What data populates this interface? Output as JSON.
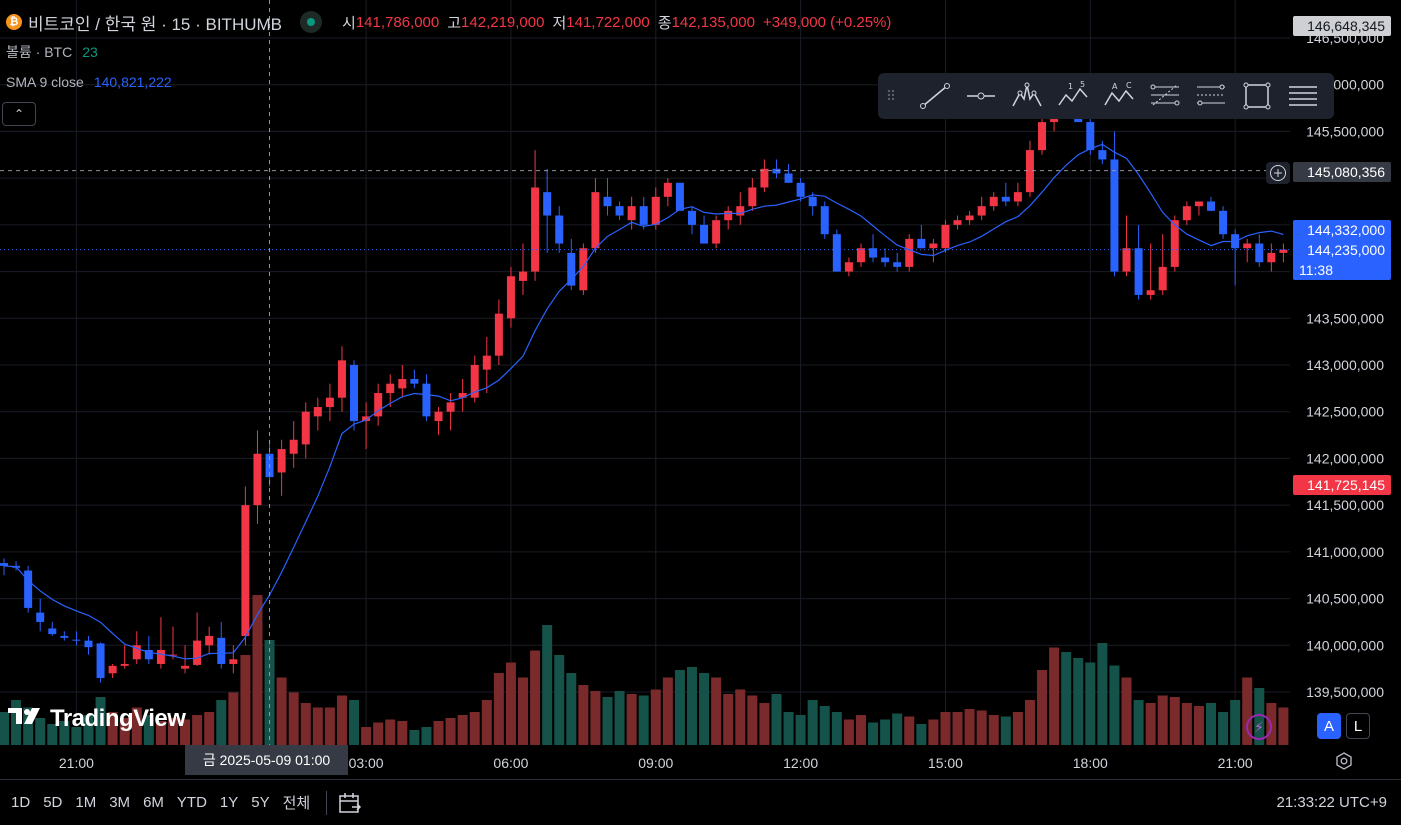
{
  "header": {
    "title": "비트코인 / 한국 원 · 15 · BITHUMB",
    "coin_glyph": "₿",
    "open_label": "시",
    "open_value": "141,786,000",
    "high_label": "고",
    "high_value": "142,219,000",
    "low_label": "저",
    "low_value": "141,722,000",
    "close_label": "종",
    "close_value": "142,135,000",
    "change": "+349,000 (+0.25%)"
  },
  "indicators": {
    "volume_label": "볼륨 · BTC",
    "volume_value": "23",
    "sma_label": "SMA 9 close",
    "sma_value": "140,821,222"
  },
  "collapse_glyph": "⌃",
  "price_tags": {
    "high": "146,648,345",
    "crosshair": "145,080,356",
    "sma": "144,332,000",
    "last": "144,235,000",
    "countdown": "11:38",
    "low": "141,725,145"
  },
  "crosshair_time": "금 2025-05-09   01:00",
  "logo_text": "TradingView",
  "scale_buttons": {
    "auto": "A",
    "log": "L"
  },
  "range_buttons": [
    "1D",
    "5D",
    "1M",
    "3M",
    "6M",
    "YTD",
    "1Y",
    "5Y",
    "전체"
  ],
  "clock": "21:33:22 UTC+9",
  "colors": {
    "up": "#f23645",
    "down": "#2962ff",
    "vol_up": "#7a2a2a",
    "vol_down": "#14524a",
    "sma": "#2962ff",
    "grid": "#1a1d26",
    "text": "#d1d4dc"
  },
  "chart_data": {
    "type": "candlestick",
    "ylim": [
      139100000,
      146800000
    ],
    "y_ticks": [
      139500000,
      140000000,
      140500000,
      141000000,
      141500000,
      142000000,
      142500000,
      143000000,
      143500000,
      144000000,
      144500000,
      145000000,
      145500000,
      146000000,
      146500000
    ],
    "y_tick_labels": [
      "139,500,000",
      "140,000,000",
      "140,500,000",
      "141,000,000",
      "141,500,000",
      "142,000,000",
      "142,500,000",
      "143,000,000",
      "143,500,000",
      "",
      "",
      "",
      "145,500,000",
      "146,000,000",
      "146,500,000"
    ],
    "x_tick_labels": [
      {
        "label": "21:00",
        "bar": 6
      },
      {
        "label": "03:00",
        "bar": 30
      },
      {
        "label": "06:00",
        "bar": 42
      },
      {
        "label": "09:00",
        "bar": 54
      },
      {
        "label": "12:00",
        "bar": 66
      },
      {
        "label": "15:00",
        "bar": 78
      },
      {
        "label": "18:00",
        "bar": 90
      },
      {
        "label": "21:00",
        "bar": 102
      }
    ],
    "crosshair": {
      "bar": 22,
      "price": 145080356
    },
    "candles": [
      [
        140880000,
        140930000,
        140750000,
        140850000
      ],
      [
        140850000,
        140900000,
        140800000,
        140830000
      ],
      [
        140800000,
        140850000,
        140350000,
        140400000
      ],
      [
        140350000,
        140500000,
        140150000,
        140250000
      ],
      [
        140180000,
        140250000,
        140100000,
        140120000
      ],
      [
        140100000,
        140150000,
        140050000,
        140080000
      ],
      [
        140060000,
        140150000,
        140000000,
        140050000
      ],
      [
        140050000,
        140100000,
        139900000,
        139980000
      ],
      [
        140020000,
        140030000,
        139600000,
        139650000
      ],
      [
        139700000,
        139800000,
        139650000,
        139780000
      ],
      [
        139780000,
        140000000,
        139750000,
        139800000
      ],
      [
        139850000,
        140150000,
        139800000,
        140000000
      ],
      [
        139950000,
        140100000,
        139800000,
        139850000
      ],
      [
        139800000,
        140300000,
        139750000,
        139950000
      ],
      [
        139900000,
        140200000,
        139850000,
        139900000
      ],
      [
        139750000,
        140000000,
        139700000,
        139780000
      ],
      [
        139790000,
        140350000,
        139780000,
        140050000
      ],
      [
        140000000,
        140200000,
        139900000,
        140100000
      ],
      [
        140080000,
        140250000,
        139750000,
        139800000
      ],
      [
        139800000,
        140000000,
        139700000,
        139850000
      ],
      [
        140100000,
        141700000,
        140000000,
        141500000
      ],
      [
        141500000,
        142300000,
        141300000,
        142050000
      ],
      [
        142050000,
        142200000,
        141700000,
        141800000
      ],
      [
        141850000,
        142200000,
        141600000,
        142100000
      ],
      [
        142050000,
        142400000,
        141900000,
        142200000
      ],
      [
        142150000,
        142600000,
        142000000,
        142500000
      ],
      [
        142450000,
        142650000,
        142300000,
        142550000
      ],
      [
        142550000,
        142800000,
        142400000,
        142650000
      ],
      [
        142650000,
        143200000,
        142500000,
        143050000
      ],
      [
        143000000,
        143050000,
        142300000,
        142400000
      ],
      [
        142400000,
        142600000,
        142100000,
        142450000
      ],
      [
        142450000,
        142800000,
        142350000,
        142700000
      ],
      [
        142700000,
        142900000,
        142550000,
        142800000
      ],
      [
        142750000,
        143000000,
        142650000,
        142850000
      ],
      [
        142850000,
        142950000,
        142750000,
        142800000
      ],
      [
        142800000,
        142900000,
        142400000,
        142450000
      ],
      [
        142400000,
        142550000,
        142250000,
        142500000
      ],
      [
        142500000,
        142700000,
        142300000,
        142600000
      ],
      [
        142650000,
        142850000,
        142500000,
        142700000
      ],
      [
        142650000,
        143100000,
        142600000,
        143000000
      ],
      [
        142950000,
        143300000,
        142700000,
        143100000
      ],
      [
        143100000,
        143700000,
        143000000,
        143550000
      ],
      [
        143500000,
        144050000,
        143400000,
        143950000
      ],
      [
        143900000,
        144300000,
        143750000,
        144000000
      ],
      [
        144000000,
        145300000,
        143900000,
        144900000
      ],
      [
        144850000,
        145100000,
        144200000,
        144600000
      ],
      [
        144600000,
        144700000,
        144200000,
        144300000
      ],
      [
        144200000,
        144350000,
        143800000,
        143850000
      ],
      [
        143800000,
        144300000,
        143750000,
        144250000
      ],
      [
        144250000,
        145000000,
        144200000,
        144850000
      ],
      [
        144800000,
        145000000,
        144600000,
        144700000
      ],
      [
        144700000,
        144750000,
        144550000,
        144600000
      ],
      [
        144550000,
        144800000,
        144450000,
        144700000
      ],
      [
        144700000,
        144800000,
        144450000,
        144500000
      ],
      [
        144500000,
        144900000,
        144450000,
        144800000
      ],
      [
        144800000,
        145000000,
        144700000,
        144950000
      ],
      [
        144950000,
        144950000,
        144650000,
        144650000
      ],
      [
        144650000,
        144700000,
        144400000,
        144500000
      ],
      [
        144500000,
        144600000,
        144300000,
        144300000
      ],
      [
        144300000,
        144600000,
        144250000,
        144550000
      ],
      [
        144550000,
        144700000,
        144450000,
        144650000
      ],
      [
        144600000,
        144850000,
        144500000,
        144700000
      ],
      [
        144700000,
        145000000,
        144650000,
        144900000
      ],
      [
        144900000,
        145200000,
        144850000,
        145100000
      ],
      [
        145100000,
        145200000,
        145000000,
        145050000
      ],
      [
        145050000,
        145150000,
        144950000,
        144950000
      ],
      [
        144950000,
        145000000,
        144750000,
        144800000
      ],
      [
        144800000,
        144850000,
        144600000,
        144700000
      ],
      [
        144700000,
        144750000,
        144350000,
        144400000
      ],
      [
        144400000,
        144450000,
        144000000,
        144000000
      ],
      [
        144000000,
        144150000,
        143950000,
        144100000
      ],
      [
        144100000,
        144300000,
        144050000,
        144250000
      ],
      [
        144250000,
        144400000,
        144100000,
        144150000
      ],
      [
        144150000,
        144250000,
        144050000,
        144100000
      ],
      [
        144100000,
        144200000,
        144000000,
        144050000
      ],
      [
        144050000,
        144400000,
        144000000,
        144350000
      ],
      [
        144350000,
        144500000,
        144250000,
        144250000
      ],
      [
        144250000,
        144350000,
        144100000,
        144300000
      ],
      [
        144250000,
        144550000,
        144200000,
        144500000
      ],
      [
        144500000,
        144600000,
        144450000,
        144550000
      ],
      [
        144550000,
        144650000,
        144500000,
        144600000
      ],
      [
        144600000,
        144800000,
        144550000,
        144700000
      ],
      [
        144700000,
        144850000,
        144650000,
        144800000
      ],
      [
        144800000,
        144950000,
        144700000,
        144750000
      ],
      [
        144750000,
        144950000,
        144700000,
        144850000
      ],
      [
        144850000,
        145400000,
        144800000,
        145300000
      ],
      [
        145300000,
        145700000,
        145250000,
        145600000
      ],
      [
        145600000,
        146100000,
        145500000,
        145900000
      ],
      [
        145900000,
        146100000,
        145700000,
        145750000
      ],
      [
        145750000,
        145800000,
        145600000,
        145600000
      ],
      [
        145600000,
        145700000,
        145250000,
        145300000
      ],
      [
        145300000,
        145400000,
        145150000,
        145200000
      ],
      [
        145200000,
        145500000,
        143950000,
        144000000
      ],
      [
        144000000,
        144600000,
        143950000,
        144250000
      ],
      [
        144250000,
        144500000,
        143700000,
        143750000
      ],
      [
        143750000,
        144300000,
        143700000,
        143800000
      ],
      [
        143800000,
        144400000,
        143750000,
        144050000
      ],
      [
        144050000,
        144600000,
        144000000,
        144550000
      ],
      [
        144550000,
        144750000,
        144500000,
        144700000
      ],
      [
        144700000,
        144750000,
        144600000,
        144750000
      ],
      [
        144750000,
        144800000,
        144650000,
        144650000
      ],
      [
        144650000,
        144700000,
        144350000,
        144400000
      ],
      [
        144400000,
        144450000,
        143850000,
        144250000
      ],
      [
        144250000,
        144350000,
        144100000,
        144300000
      ],
      [
        144300000,
        144400000,
        144050000,
        144100000
      ],
      [
        144100000,
        144300000,
        144000000,
        144200000
      ],
      [
        144200000,
        144300000,
        144100000,
        144235000
      ]
    ],
    "volumes": [
      22,
      30,
      25,
      18,
      14,
      16,
      12,
      20,
      32,
      22,
      18,
      25,
      20,
      16,
      18,
      17,
      20,
      22,
      30,
      35,
      60,
      100,
      70,
      45,
      35,
      28,
      25,
      25,
      33,
      30,
      12,
      15,
      17,
      16,
      10,
      12,
      16,
      18,
      20,
      22,
      30,
      48,
      55,
      45,
      63,
      80,
      60,
      48,
      40,
      36,
      32,
      36,
      34,
      33,
      37,
      45,
      50,
      52,
      48,
      45,
      34,
      37,
      33,
      28,
      34,
      22,
      20,
      30,
      26,
      22,
      17,
      20,
      15,
      17,
      21,
      19,
      14,
      17,
      22,
      22,
      24,
      23,
      20,
      19,
      22,
      30,
      50,
      65,
      62,
      58,
      55,
      68,
      53,
      45,
      30,
      28,
      33,
      32,
      28,
      26,
      28,
      22,
      30,
      45,
      38,
      28,
      25
    ]
  }
}
